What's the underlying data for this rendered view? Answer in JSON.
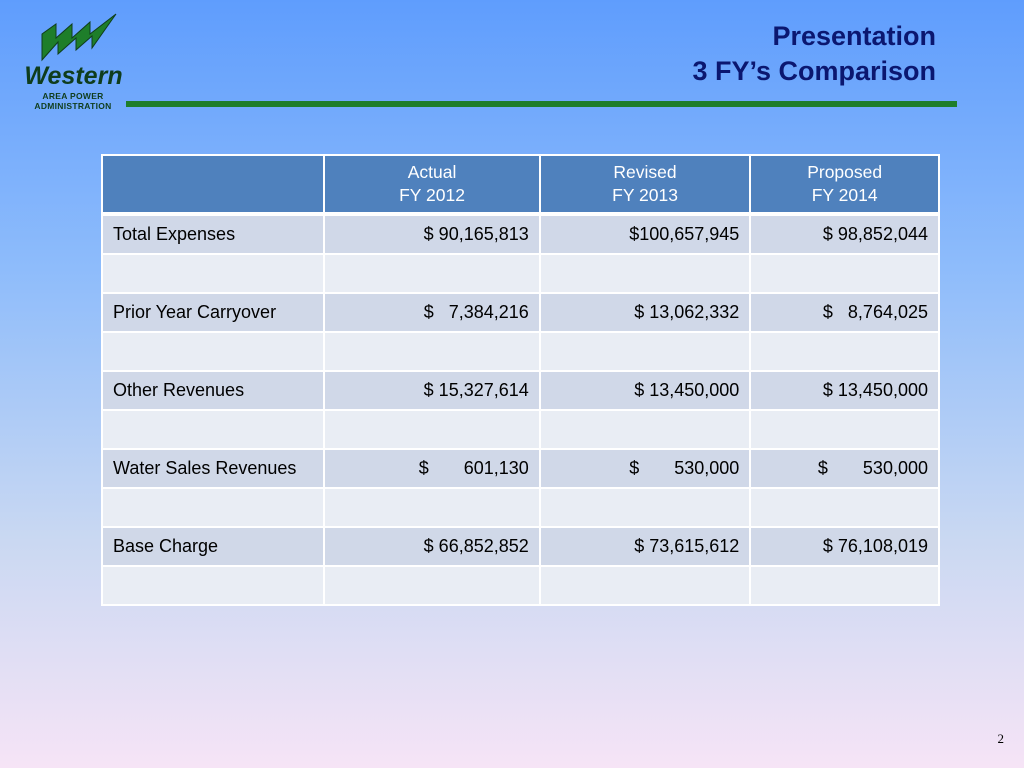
{
  "logo": {
    "word": "Western",
    "line1": "AREA POWER",
    "line2": "ADMINISTRATION"
  },
  "title": {
    "line1": "Presentation",
    "line2": "3 FY’s Comparison"
  },
  "table": {
    "headers": [
      {
        "line1": "",
        "line2": ""
      },
      {
        "line1": "Actual",
        "line2": "FY 2012"
      },
      {
        "line1": "Revised",
        "line2": "FY 2013"
      },
      {
        "line1": "Proposed",
        "line2": "FY 2014"
      }
    ],
    "rows": [
      [
        "Total Expenses",
        "$ 90,165,813",
        "$100,657,945",
        "$ 98,852,044"
      ],
      [
        "",
        "",
        "",
        ""
      ],
      [
        "Prior Year Carryover",
        "$   7,384,216",
        "$ 13,062,332",
        "$   8,764,025"
      ],
      [
        "",
        "",
        "",
        ""
      ],
      [
        "Other Revenues",
        "$ 15,327,614",
        "$ 13,450,000",
        "$ 13,450,000"
      ],
      [
        "",
        "",
        "",
        ""
      ],
      [
        "Water Sales Revenues",
        "$       601,130",
        "$       530,000",
        "$       530,000"
      ],
      [
        "",
        "",
        "",
        ""
      ],
      [
        "Base Charge",
        "$ 66,852,852",
        "$ 73,615,612",
        "$ 76,108,019"
      ],
      [
        "",
        "",
        "",
        ""
      ]
    ]
  },
  "page_number": "2",
  "colors": {
    "title": "#0b1770",
    "rule": "#1e7e2a",
    "header_fill": "#4f81bd",
    "row_dark": "#d0d8e8",
    "row_light": "#e9edf4"
  }
}
